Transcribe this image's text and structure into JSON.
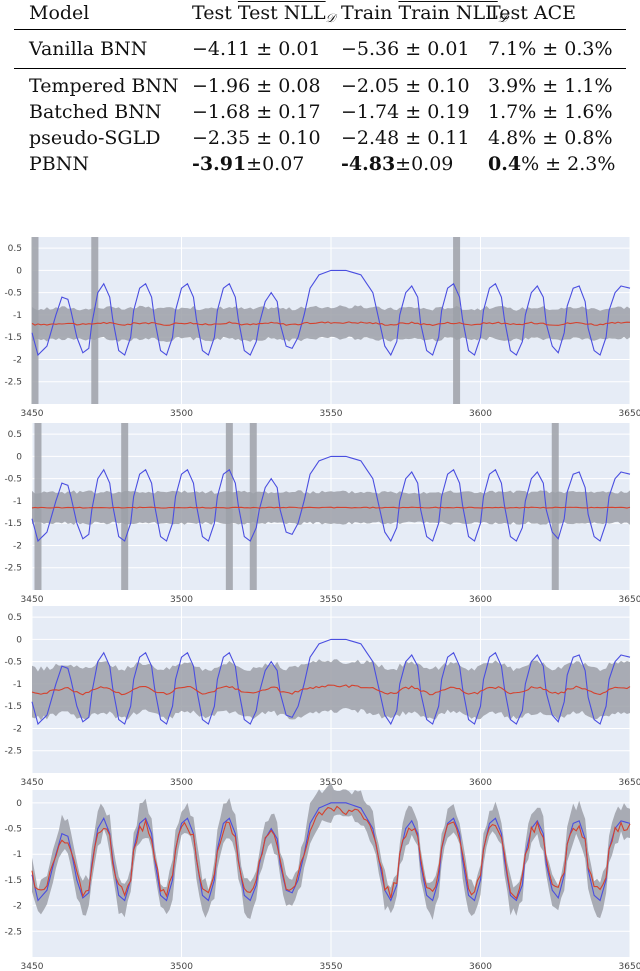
{
  "table": {
    "headers": [
      "Model",
      "Test NLL",
      "𝒟",
      "Train NLL",
      "𝒟",
      "Test ACE"
    ],
    "rows": [
      {
        "model": "Vanilla BNN",
        "test_nll": "−4.11 ± 0.01",
        "train_nll": "−5.36 ± 0.01",
        "ace": "7.1% ± 0.3%"
      },
      {
        "model": "Tempered BNN",
        "test_nll": "−1.96 ± 0.08",
        "train_nll": "−2.05 ± 0.10",
        "ace": "3.9% ± 1.1%"
      },
      {
        "model": "Batched BNN",
        "test_nll": "−1.68 ± 0.17",
        "train_nll": "−1.74 ± 0.19",
        "ace": "1.7% ± 1.6%"
      },
      {
        "model": "pseudo-SGLD",
        "test_nll": "−2.35 ± 0.10",
        "train_nll": "−2.48 ± 0.11",
        "ace": "4.8% ± 0.8%"
      },
      {
        "model": "PBNN",
        "test_nll_bold": "-3.91",
        "test_nll_rest": "±0.07",
        "train_nll_bold": "-4.83",
        "train_nll_rest": "±0.09",
        "ace_bold": "0.4",
        "ace_rest": "% ± 2.3%"
      }
    ]
  },
  "chart_data": [
    {
      "type": "line",
      "panel": 1,
      "xlim": [
        3450,
        3650
      ],
      "ylim": [
        -3,
        0.75
      ],
      "x_ticks": [
        "3450",
        "3500",
        "3550",
        "3600",
        "3650"
      ],
      "y_ticks": [
        "0.5",
        "0",
        "-0.5",
        "-1",
        "-1.5",
        "-2",
        "-2.5"
      ],
      "band_center": -1.2,
      "band_halfwidth": 0.35,
      "band_noise": 0.04,
      "mean_follow": 0.05,
      "mean_noise": 0.02,
      "highlight_x": [
        3451,
        3471,
        3592
      ],
      "series": [
        {
          "role": "observed",
          "color": "#4a4ee0"
        },
        {
          "role": "predicted-mean",
          "color": "#d4422e"
        },
        {
          "role": "uncertainty",
          "color": "#9ca0a8"
        }
      ],
      "background": "#e6ecf6"
    },
    {
      "type": "line",
      "panel": 2,
      "xlim": [
        3450,
        3650
      ],
      "ylim": [
        -3,
        0.75
      ],
      "x_ticks": [
        "3450",
        "3500",
        "3550",
        "3600",
        "3650"
      ],
      "y_ticks": [
        "0.5",
        "0",
        "-0.5",
        "-1",
        "-1.5",
        "-2",
        "-2.5"
      ],
      "band_center": -1.15,
      "band_halfwidth": 0.35,
      "band_noise": 0.04,
      "mean_follow": 0.0,
      "mean_noise": 0.01,
      "highlight_x": [
        3452,
        3481,
        3516,
        3524,
        3625
      ],
      "series": [
        {
          "role": "observed",
          "color": "#4a4ee0"
        },
        {
          "role": "predicted-mean",
          "color": "#d4422e"
        },
        {
          "role": "uncertainty",
          "color": "#9ca0a8"
        }
      ],
      "background": "#e6ecf6"
    },
    {
      "type": "line",
      "panel": 3,
      "xlim": [
        3450,
        3650
      ],
      "ylim": [
        -3,
        0.75
      ],
      "x_ticks": [
        "3450",
        "3500",
        "3550",
        "3600",
        "3650"
      ],
      "y_ticks": [
        "0.5",
        "0",
        "-0.5",
        "-1",
        "-1.5",
        "-2",
        "-2.5"
      ],
      "band_center": -1.15,
      "band_halfwidth": 0.55,
      "band_noise": 0.06,
      "mean_follow": 0.18,
      "mean_noise": 0.03,
      "highlight_x": [],
      "series": [
        {
          "role": "observed",
          "color": "#4a4ee0"
        },
        {
          "role": "predicted-mean",
          "color": "#d4422e"
        },
        {
          "role": "uncertainty",
          "color": "#9ca0a8"
        }
      ],
      "background": "#e6ecf6"
    },
    {
      "type": "line",
      "panel": 4,
      "xlim": [
        3450,
        3650
      ],
      "ylim": [
        -3,
        0.25
      ],
      "x_ticks": [
        "3450",
        "3500",
        "3550",
        "3600",
        "3650"
      ],
      "y_ticks": [
        "0",
        "-0.5",
        "-1",
        "-1.5",
        "-2",
        "-2.5"
      ],
      "band_center": null,
      "band_halfwidth": 0.3,
      "band_noise": 0.1,
      "mean_follow": 0.85,
      "mean_noise": 0.1,
      "highlight_x": [],
      "series": [
        {
          "role": "observed",
          "color": "#4a4ee0"
        },
        {
          "role": "predicted-mean",
          "color": "#d4422e"
        },
        {
          "role": "uncertainty",
          "color": "#9ca0a8"
        }
      ],
      "background": "#e6ecf6"
    }
  ],
  "observed_signal": {
    "x": [
      3450,
      3452,
      3455,
      3458,
      3460,
      3462,
      3463,
      3465,
      3467,
      3469,
      3470,
      3472,
      3474,
      3476,
      3477,
      3479,
      3481,
      3483,
      3484,
      3486,
      3488,
      3490,
      3491,
      3493,
      3495,
      3497,
      3498,
      3500,
      3502,
      3504,
      3505,
      3507,
      3509,
      3511,
      3512,
      3514,
      3516,
      3518,
      3519,
      3521,
      3523,
      3525,
      3526,
      3528,
      3530,
      3532,
      3533,
      3535,
      3537,
      3539,
      3541,
      3543,
      3546,
      3550,
      3555,
      3560,
      3564,
      3566,
      3568,
      3570,
      3572,
      3573,
      3575,
      3577,
      3579,
      3580,
      3582,
      3584,
      3586,
      3587,
      3589,
      3591,
      3593,
      3594,
      3596,
      3598,
      3600,
      3601,
      3603,
      3605,
      3607,
      3608,
      3610,
      3612,
      3614,
      3615,
      3617,
      3619,
      3621,
      3622,
      3624,
      3626,
      3628,
      3629,
      3631,
      3633,
      3635,
      3636,
      3638,
      3640,
      3642,
      3643,
      3645,
      3647,
      3650
    ],
    "y": [
      -1.4,
      -1.9,
      -1.7,
      -1.0,
      -0.6,
      -0.65,
      -0.9,
      -1.5,
      -1.85,
      -1.75,
      -1.2,
      -0.5,
      -0.3,
      -0.6,
      -1.1,
      -1.8,
      -1.9,
      -1.5,
      -0.9,
      -0.4,
      -0.3,
      -0.6,
      -1.1,
      -1.8,
      -1.9,
      -1.5,
      -0.9,
      -0.4,
      -0.3,
      -0.6,
      -1.1,
      -1.8,
      -1.9,
      -1.5,
      -0.9,
      -0.4,
      -0.3,
      -0.6,
      -1.1,
      -1.8,
      -1.9,
      -1.6,
      -1.2,
      -0.7,
      -0.5,
      -0.7,
      -1.2,
      -1.7,
      -1.75,
      -1.5,
      -1.0,
      -0.4,
      -0.1,
      0.0,
      0.0,
      -0.1,
      -0.5,
      -1.1,
      -1.7,
      -1.9,
      -1.6,
      -1.0,
      -0.5,
      -0.35,
      -0.6,
      -1.2,
      -1.8,
      -1.9,
      -1.5,
      -0.9,
      -0.4,
      -0.3,
      -0.6,
      -1.1,
      -1.8,
      -1.9,
      -1.5,
      -0.9,
      -0.4,
      -0.3,
      -0.6,
      -1.1,
      -1.8,
      -1.9,
      -1.6,
      -1.0,
      -0.5,
      -0.35,
      -0.6,
      -1.2,
      -1.7,
      -1.85,
      -1.4,
      -0.8,
      -0.4,
      -0.35,
      -0.7,
      -1.3,
      -1.8,
      -1.9,
      -1.5,
      -0.9,
      -0.5,
      -0.35,
      -0.4
    ]
  }
}
